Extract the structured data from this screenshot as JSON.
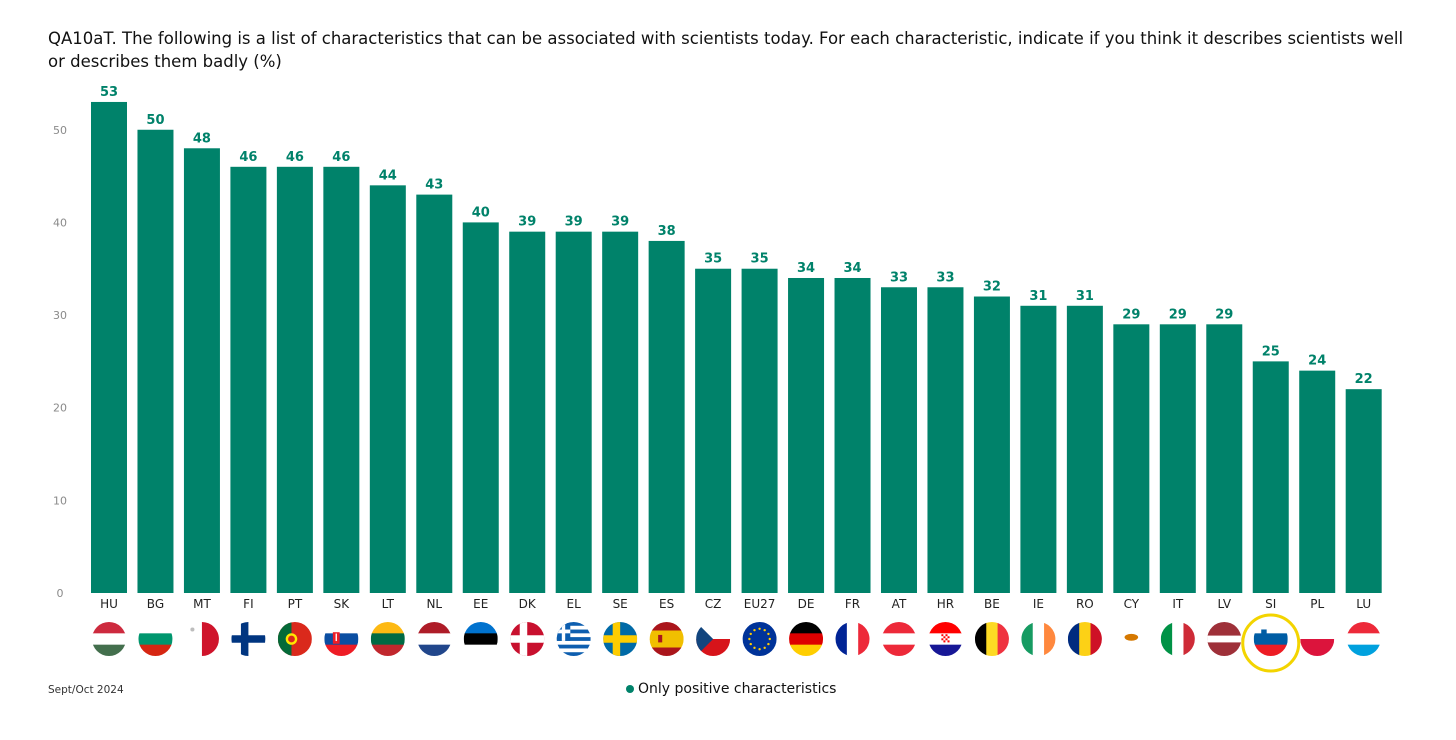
{
  "title": "QA10aT. The following is a list of characteristics that can be associated with scientists today. For each characteristic, indicate if you think it describes scientists well or describes them badly (%)",
  "footnote": "Sept/Oct 2024",
  "legend": {
    "label": "Only positive characteristics",
    "color": "#00826a"
  },
  "colors": {
    "bar": "#00826a",
    "label": "#00826a",
    "axis_tick": "#8a8a8a",
    "highlight_ring": "#f3d400"
  },
  "highlighted_country": "SI",
  "chart_data": {
    "type": "bar",
    "categories": [
      "HU",
      "BG",
      "MT",
      "FI",
      "PT",
      "SK",
      "LT",
      "NL",
      "EE",
      "DK",
      "EL",
      "SE",
      "ES",
      "CZ",
      "EU27",
      "DE",
      "FR",
      "AT",
      "HR",
      "BE",
      "IE",
      "RO",
      "CY",
      "IT",
      "LV",
      "SI",
      "PL",
      "LU"
    ],
    "series": [
      {
        "name": "Only positive characteristics",
        "values": [
          53,
          50,
          48,
          46,
          46,
          46,
          44,
          43,
          40,
          39,
          39,
          39,
          38,
          35,
          35,
          34,
          34,
          33,
          33,
          32,
          31,
          31,
          29,
          29,
          29,
          25,
          24,
          22
        ]
      }
    ],
    "yticks": [
      0,
      10,
      20,
      30,
      40,
      50
    ],
    "ylim": [
      0,
      53
    ],
    "grid": false,
    "legend_position": "bottom"
  }
}
